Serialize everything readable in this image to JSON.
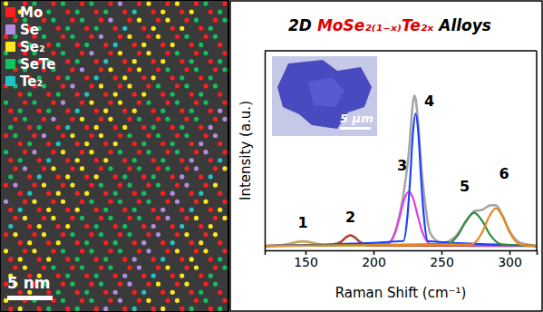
{
  "chart_data": {
    "type": "line",
    "title": "2D MoSe₂₍₁₋ₓ₎Te₂ₓ Alloys",
    "title_highlight": "MoSe₂₍₁₋ₓ₎Te₂ₓ",
    "x_label": "Raman Shift (cm⁻¹)",
    "y_label": "Intensity (a.u.)",
    "xlim": [
      120,
      320
    ],
    "xticks": [
      150,
      200,
      250,
      300
    ],
    "ylim": [
      -0.03,
      1.3
    ],
    "yticks": [],
    "tick_labels": "x",
    "series": [
      {
        "color": "#a6a6a6",
        "x": [
          120,
          132,
          140,
          148,
          156,
          164,
          176,
          180,
          183,
          186,
          190,
          200,
          210,
          216,
          220,
          223,
          226,
          229,
          230,
          231,
          233,
          235,
          238,
          242,
          250,
          260,
          268,
          274,
          280,
          286,
          290,
          295,
          300,
          308,
          320
        ],
        "values": [
          0,
          0.004,
          0.018,
          0.03,
          0.018,
          0.004,
          0.026,
          0.058,
          0.07,
          0.058,
          0.026,
          0.0,
          0.011,
          0.095,
          0.24,
          0.4,
          0.62,
          0.95,
          1.0,
          0.98,
          0.8,
          0.55,
          0.28,
          0.08,
          0.02,
          0.06,
          0.16,
          0.23,
          0.24,
          0.27,
          0.27,
          0.2,
          0.1,
          0.02,
          0
        ]
      },
      {
        "color": "#d2a64a",
        "x": [
          120,
          132,
          140,
          144,
          148,
          152,
          156,
          164,
          320
        ],
        "values": [
          0,
          0.004,
          0.018,
          0.027,
          0.03,
          0.027,
          0.018,
          0.004,
          0
        ]
      },
      {
        "color": "#c0392b",
        "x": [
          120,
          170,
          176,
          180,
          183,
          186,
          190,
          196,
          320
        ],
        "values": [
          0,
          0.002,
          0.026,
          0.058,
          0.07,
          0.058,
          0.026,
          0.002,
          0
        ]
      },
      {
        "color": "#e03ee0",
        "x": [
          120,
          210,
          216,
          220,
          223,
          226,
          229,
          232,
          236,
          242,
          320
        ],
        "values": [
          0,
          0.011,
          0.09,
          0.22,
          0.32,
          0.36,
          0.32,
          0.22,
          0.09,
          0.011,
          0
        ]
      },
      {
        "color": "#1f3fff",
        "x": [
          120,
          222,
          225,
          227,
          229,
          231,
          233,
          235,
          237,
          240,
          320
        ],
        "values": [
          0,
          0.032,
          0.2,
          0.45,
          0.75,
          0.88,
          0.75,
          0.45,
          0.2,
          0.032,
          0
        ]
      },
      {
        "color": "#2e8b3e",
        "x": [
          120,
          254,
          262,
          268,
          274,
          280,
          286,
          294,
          320
        ],
        "values": [
          0,
          0.01,
          0.07,
          0.166,
          0.22,
          0.166,
          0.07,
          0.01,
          0
        ]
      },
      {
        "color": "#e8891a",
        "x": [
          120,
          272,
          280,
          285,
          290,
          295,
          300,
          308,
          320
        ],
        "values": [
          0,
          0.009,
          0.091,
          0.194,
          0.25,
          0.194,
          0.091,
          0.009,
          0
        ]
      }
    ],
    "annotations": [
      {
        "text": "1",
        "x": 148,
        "y": 0.12
      },
      {
        "text": "2",
        "x": 183,
        "y": 0.16
      },
      {
        "text": "3",
        "x": 221,
        "y": 0.5
      },
      {
        "text": "4",
        "x": 241,
        "y": 0.93
      },
      {
        "text": "5",
        "x": 267,
        "y": 0.36
      },
      {
        "text": "6",
        "x": 296,
        "y": 0.45
      }
    ]
  },
  "stem_image": {
    "legend": [
      {
        "label": "Mo",
        "color": "#ff1e1e"
      },
      {
        "label": "Se",
        "color": "#b48ce0"
      },
      {
        "label": "Se₂",
        "color": "#ffe81a"
      },
      {
        "label": "SeTe",
        "color": "#12c060"
      },
      {
        "label": "Te₂",
        "color": "#22c4c4"
      }
    ],
    "scale_bar": "5 nm"
  },
  "inset": {
    "scale_bar": "5 μm"
  }
}
